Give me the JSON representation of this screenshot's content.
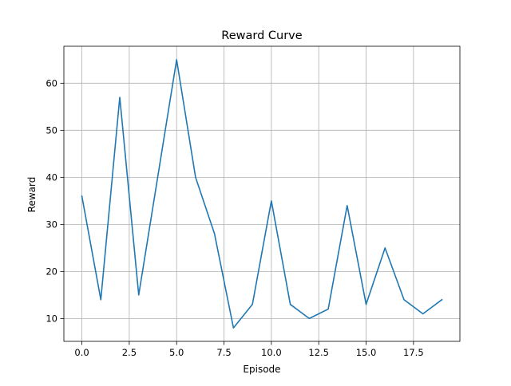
{
  "chart_data": {
    "type": "line",
    "title": "Reward Curve",
    "xlabel": "Episode",
    "ylabel": "Reward",
    "xlim": [
      -0.95,
      19.95
    ],
    "ylim": [
      5.15,
      67.85
    ],
    "xticks": [
      0,
      2.5,
      5,
      7.5,
      10,
      12.5,
      15,
      17.5
    ],
    "xtick_labels": [
      "0.0",
      "2.5",
      "5.0",
      "7.5",
      "10.0",
      "12.5",
      "15.0",
      "17.5"
    ],
    "yticks": [
      10,
      20,
      30,
      40,
      50,
      60
    ],
    "ytick_labels": [
      "10",
      "20",
      "30",
      "40",
      "50",
      "60"
    ],
    "grid": true,
    "series": [
      {
        "color": "#1f77b4",
        "x": [
          0,
          1,
          2,
          3,
          4,
          5,
          6,
          7,
          8,
          9,
          10,
          11,
          12,
          13,
          14,
          15,
          16,
          17,
          18,
          19
        ],
        "y": [
          36,
          14,
          57,
          15,
          40,
          65,
          40,
          28,
          8,
          13,
          35,
          13,
          10,
          12,
          34,
          13,
          25,
          14,
          11,
          14
        ]
      }
    ]
  }
}
